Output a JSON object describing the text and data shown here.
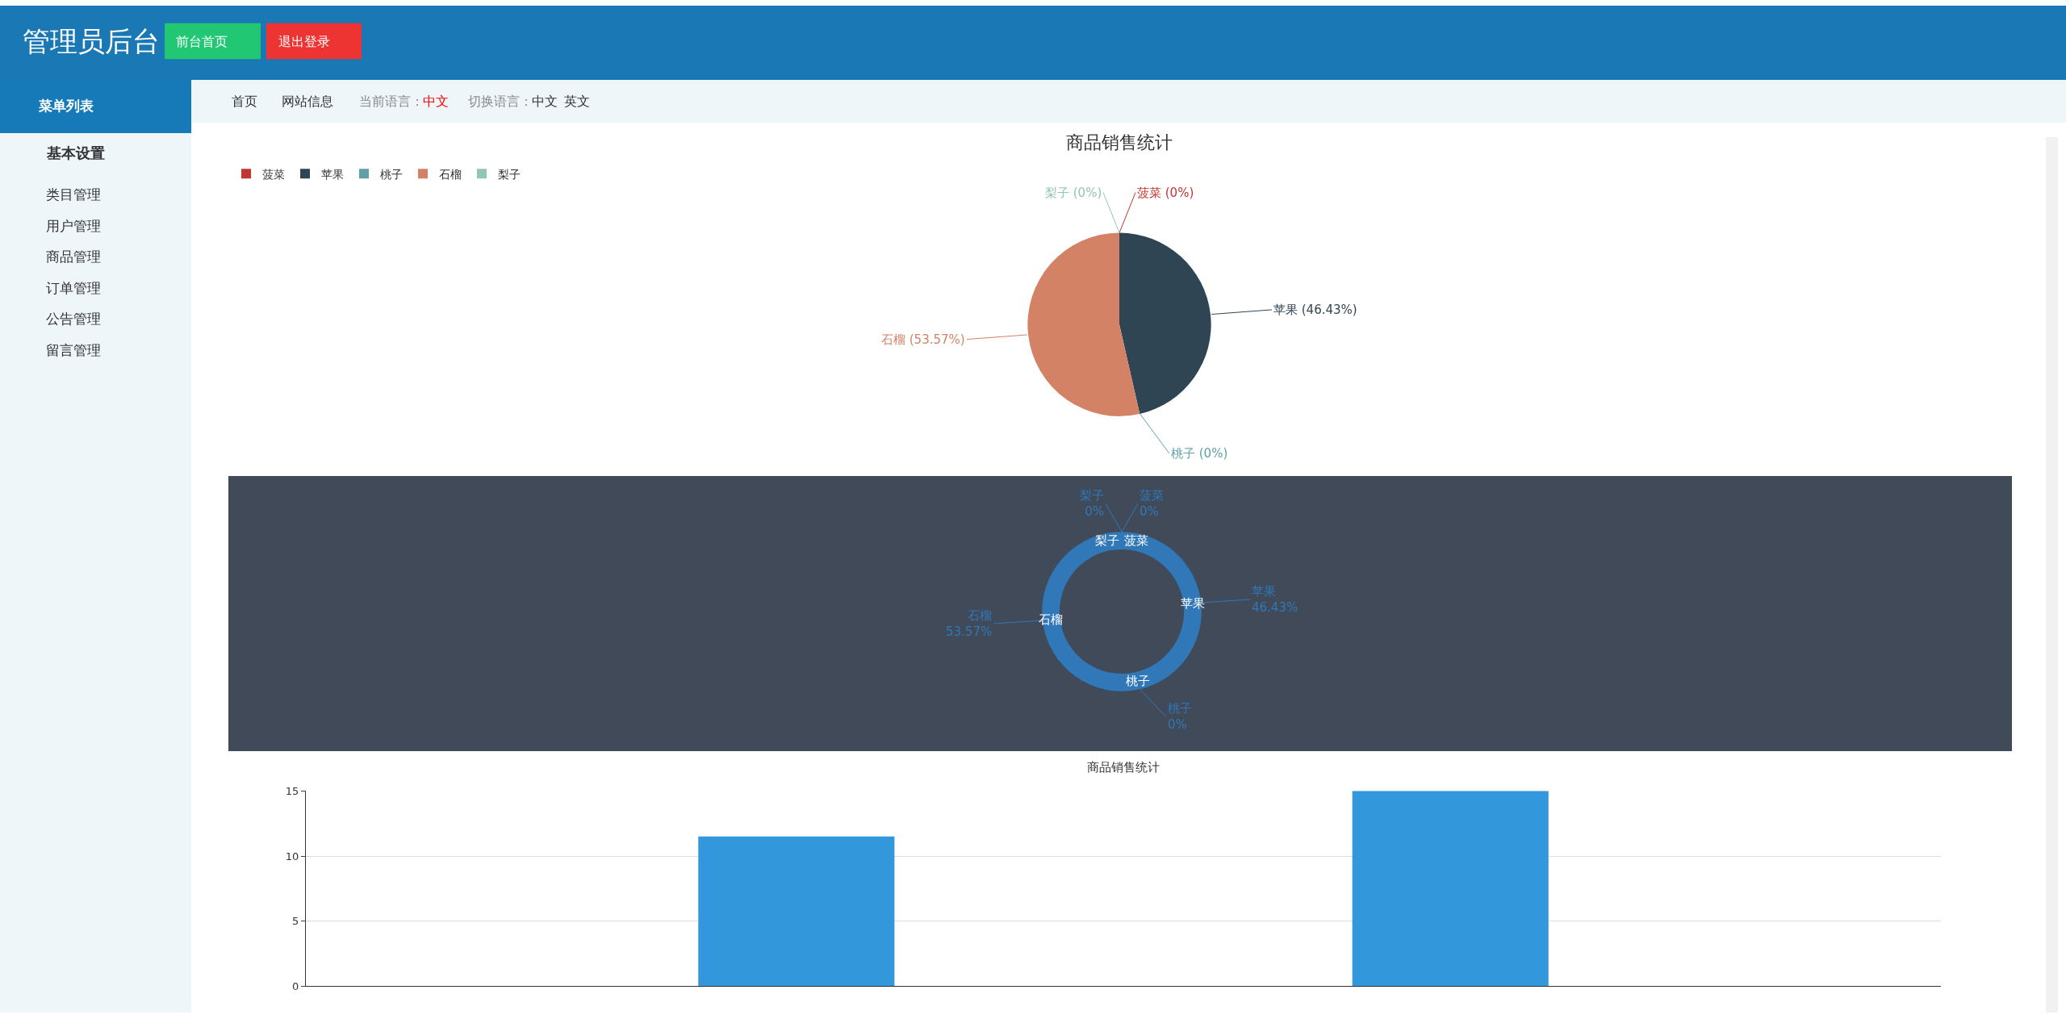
{
  "chart_data": [
    {
      "type": "other",
      "annotations": [
        "管理员后台",
        "前台首页",
        "退出登录",
        "菜单列表",
        "基本设置",
        "类目管理",
        "用户管理",
        "商品管理",
        "订单管理",
        "公告管理",
        "留言管理",
        "首页",
        "网站信息",
        "当前语言：",
        "中文",
        "切换语言：",
        "中文",
        "英文"
      ]
    },
    {
      "type": "pie",
      "title": "商品销售统计",
      "legend": "top left",
      "categories": [
        "菠菜",
        "苹果",
        "桃子",
        "石榴",
        "梨子"
      ],
      "values": [
        0,
        46.43,
        0,
        53.57,
        0
      ],
      "colors": [
        "#c23531",
        "#2f4554",
        "#61a0a8",
        "#d48265",
        "#91c7ae"
      ],
      "value_labels": [
        "菠菜 (0%)",
        "苹果 (46.43%)",
        "桃子 (0%)",
        "石榴 (53.57%)",
        "梨子 (0%)"
      ]
    },
    {
      "type": "donut",
      "categories": [
        "菠菜",
        "苹果",
        "桃子",
        "石榴",
        "梨子"
      ],
      "values": [
        0,
        46.43,
        0,
        53.57,
        0
      ],
      "colors": [
        "#3078b8",
        "#3078b8",
        "#3078b8",
        "#3078b8",
        "#3078b8"
      ],
      "value_labels": [
        "菠菜\n0%",
        "苹果\n46.43%",
        "桃子\n0%",
        "石榴\n53.57%",
        "梨子\n0%"
      ]
    },
    {
      "type": "bar",
      "title": "商品销售统计",
      "categories": [
        null,
        null,
        null,
        null,
        null
      ],
      "values": [
        0,
        11.5,
        0,
        15,
        0
      ],
      "color": "#3398db",
      "ylim": [
        0,
        15
      ],
      "yticks": [
        0,
        5,
        10,
        15
      ],
      "grid": "y"
    }
  ]
}
